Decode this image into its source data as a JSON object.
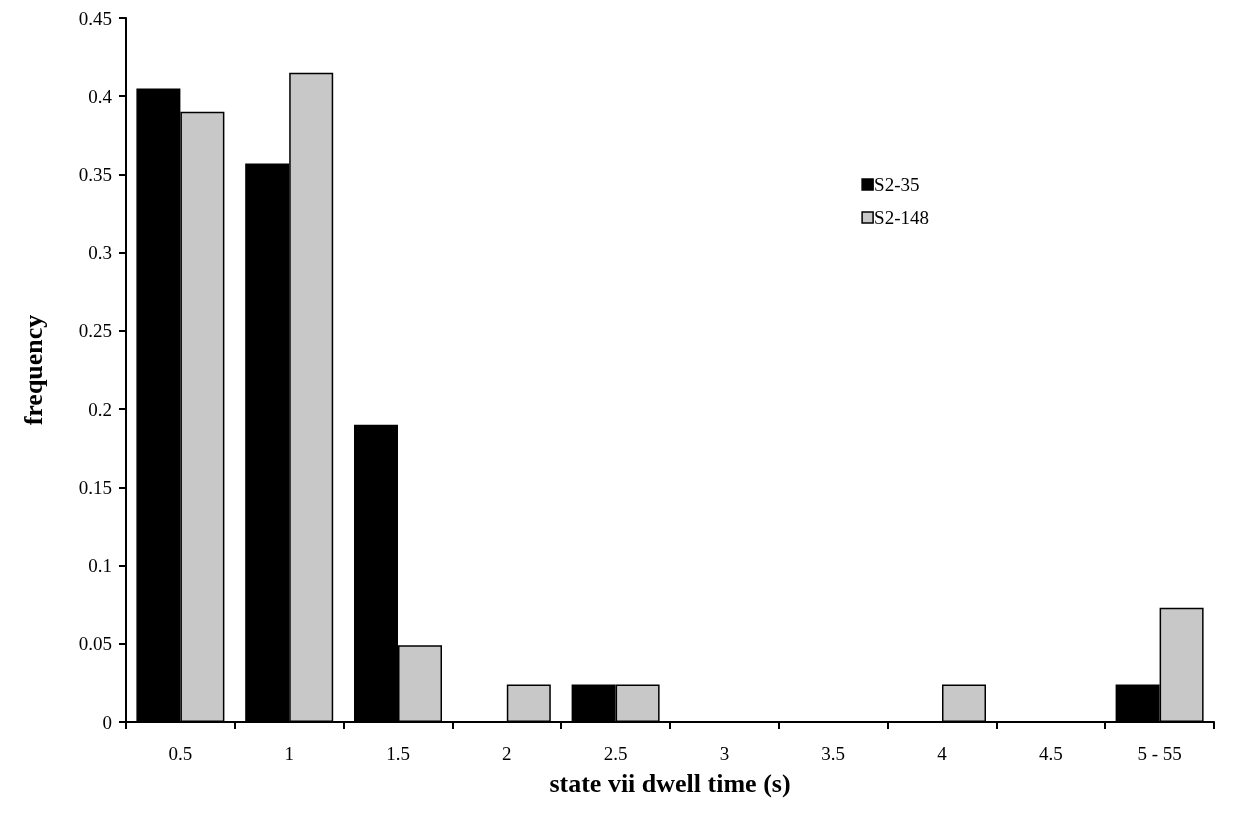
{
  "chart_data": {
    "type": "bar",
    "xlabel": "state vii dwell time (s)",
    "ylabel": "frequency",
    "categories": [
      "0.5",
      "1",
      "1.5",
      "2",
      "2.5",
      "3",
      "3.5",
      "4",
      "4.5",
      "5 - 55"
    ],
    "series": [
      {
        "name": "S2-35",
        "color": "#000000",
        "values": [
          0.405,
          0.357,
          0.19,
          0,
          0.024,
          0,
          0,
          0,
          0,
          0.024
        ]
      },
      {
        "name": "S2-148",
        "color": "#c8c8c8",
        "values": [
          0.39,
          0.415,
          0.049,
          0.024,
          0.024,
          0,
          0,
          0.024,
          0,
          0.073
        ]
      }
    ],
    "ylim": [
      0,
      0.45
    ],
    "yticks": [
      0,
      0.05,
      0.1,
      0.15,
      0.2,
      0.25,
      0.3,
      0.35,
      0.4,
      0.45
    ],
    "grid": false,
    "legend": "top right"
  }
}
